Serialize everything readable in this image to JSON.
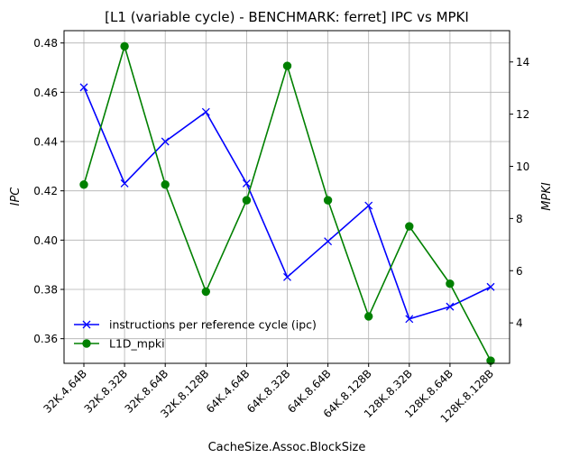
{
  "chart_data": {
    "type": "line",
    "title": "[L1 (variable cycle) - BENCHMARK: ferret]  IPC vs MPKI",
    "xlabel": "CacheSize.Assoc.BlockSize",
    "ylabel_left": "IPC",
    "ylabel_right": "MPKI",
    "categories": [
      "32K.4.64B",
      "32K.8.32B",
      "32K.8.64B",
      "32K.8.128B",
      "64K.4.64B",
      "64K.8.32B",
      "64K.8.64B",
      "64K.8.128B",
      "128K.8.32B",
      "128K.8.64B",
      "128K.8.128B"
    ],
    "ylim_left": [
      0.35,
      0.485
    ],
    "yticks_left": [
      "0.36",
      "0.38",
      "0.40",
      "0.42",
      "0.44",
      "0.46",
      "0.48"
    ],
    "ylim_right": [
      2.45,
      15.2
    ],
    "yticks_right": [
      "4",
      "6",
      "8",
      "10",
      "12",
      "14"
    ],
    "grid": true,
    "legend_position": "lower-left",
    "series": [
      {
        "name": "instructions per reference cycle (ipc)",
        "axis": "left",
        "color": "#0000ff",
        "marker": "x",
        "values": [
          0.462,
          0.423,
          0.44,
          0.452,
          0.423,
          0.385,
          0.3995,
          0.414,
          0.368,
          0.373,
          0.381
        ]
      },
      {
        "name": "L1D_mpki",
        "axis": "right",
        "color": "#008000",
        "marker": "o",
        "values": [
          9.3,
          14.6,
          9.3,
          5.2,
          8.7,
          13.85,
          8.7,
          4.25,
          7.7,
          5.5,
          2.55
        ]
      }
    ]
  }
}
